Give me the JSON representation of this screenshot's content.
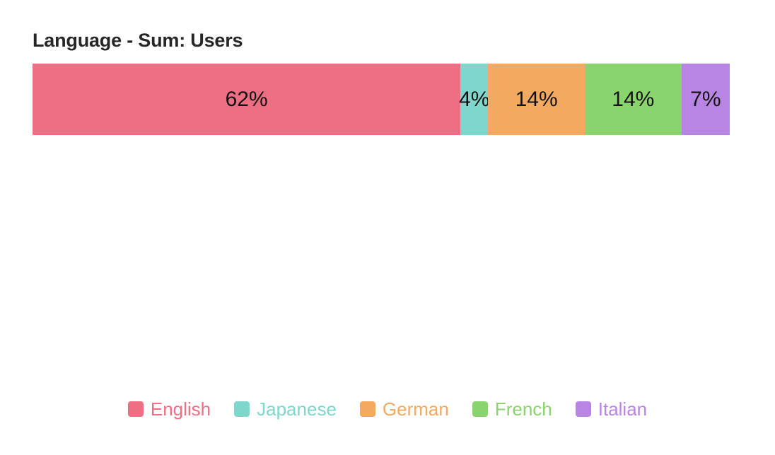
{
  "chart_data": {
    "type": "bar",
    "orientation": "horizontal",
    "stacking": "percent",
    "title": "Language - Sum: Users",
    "categories": [
      "English",
      "Japanese",
      "German",
      "French",
      "Italian"
    ],
    "values_percent": [
      62,
      4,
      14,
      14,
      7
    ],
    "data_labels": [
      "62%",
      "4%",
      "14%",
      "14%",
      "7%"
    ],
    "series": [
      {
        "name": "English",
        "percent": 62,
        "label": "62%",
        "color": "#EE6E83"
      },
      {
        "name": "Japanese",
        "percent": 4,
        "label": "4%",
        "color": "#7ED6CC"
      },
      {
        "name": "German",
        "percent": 14,
        "label": "14%",
        "color": "#F4A961"
      },
      {
        "name": "French",
        "percent": 14,
        "label": "14%",
        "color": "#8AD46E"
      },
      {
        "name": "Italian",
        "percent": 7,
        "label": "7%",
        "color": "#B985E4"
      }
    ],
    "legend_position": "bottom",
    "axes_visible": false,
    "grid": false,
    "background": "#ffffff",
    "label_color": "#111111",
    "title_color": "#262626"
  }
}
